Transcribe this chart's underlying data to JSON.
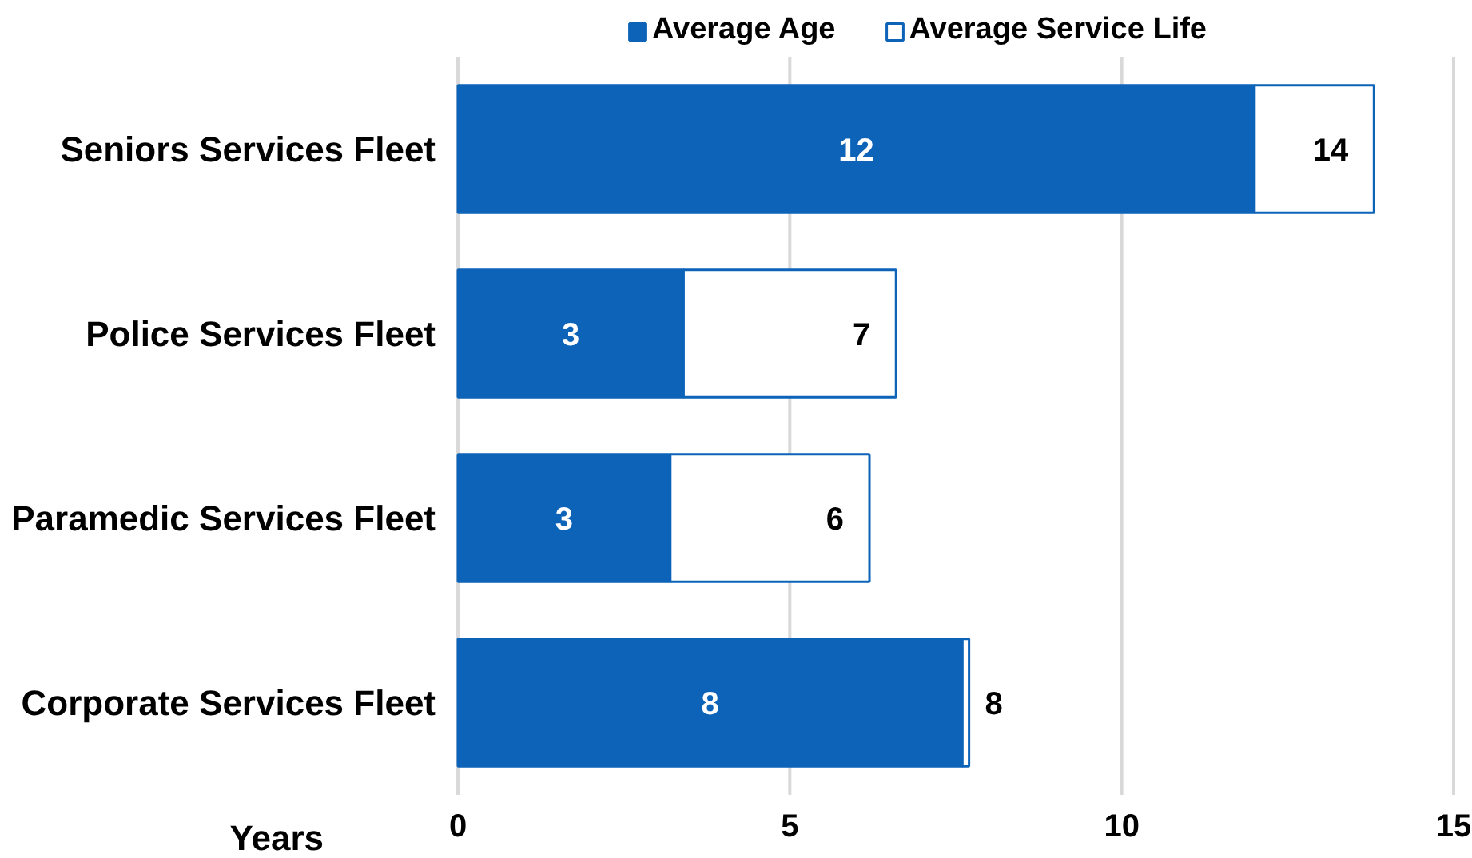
{
  "chart_data": {
    "type": "bar",
    "orientation": "horizontal",
    "stacked": true,
    "categories": [
      "Seniors Services Fleet",
      "Police Services Fleet",
      "Paramedic Services Fleet",
      "Corporate Services Fleet"
    ],
    "series": [
      {
        "name": "Average Age",
        "color": "#0c63b8",
        "values": [
          12.0,
          3.4,
          3.2,
          7.6
        ],
        "value_labels": [
          "12",
          "3",
          "3",
          "8"
        ]
      },
      {
        "name": "Average Service Life",
        "color": "#ffffff",
        "values": [
          1.8,
          3.2,
          3.0,
          0.1
        ]
      }
    ],
    "totals": [
      "14",
      "7",
      "6",
      "8"
    ],
    "xlabel": "Years",
    "xlim": [
      0,
      15
    ],
    "xticks": [
      0,
      5,
      10,
      15
    ],
    "grid": "x",
    "legend": "top"
  }
}
